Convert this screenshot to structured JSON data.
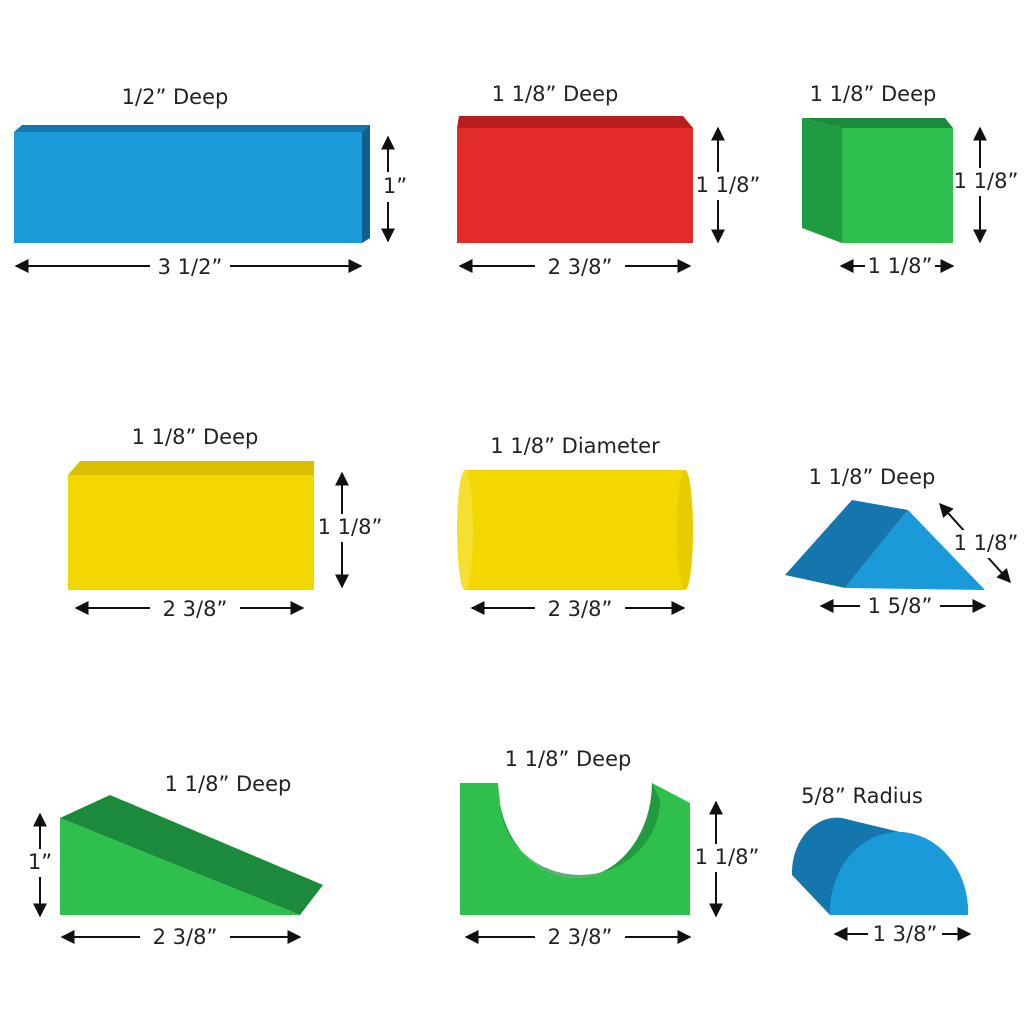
{
  "blocks": [
    {
      "depth": "1/2” Deep",
      "width": "3 1/2”",
      "height": "1”"
    },
    {
      "depth": "1 1/8” Deep",
      "width": "2 3/8”",
      "height": "1 1/8”"
    },
    {
      "depth": "1 1/8” Deep",
      "width": "1 1/8”",
      "height": "1 1/8”"
    },
    {
      "depth": "1 1/8” Deep",
      "width": "2 3/8”",
      "height": "1 1/8”"
    },
    {
      "depth": "1 1/8” Diameter",
      "width": "2 3/8”"
    },
    {
      "depth": "1 1/8” Deep",
      "width": "1 5/8”",
      "height": "1 1/8”"
    },
    {
      "depth": "1 1/8” Deep",
      "width": "2 3/8”",
      "height": "1”"
    },
    {
      "depth": "1 1/8” Deep",
      "width": "2 3/8”",
      "height": "1 1/8”"
    },
    {
      "depth": "5/8” Radius",
      "width": "1 3/8”"
    }
  ]
}
